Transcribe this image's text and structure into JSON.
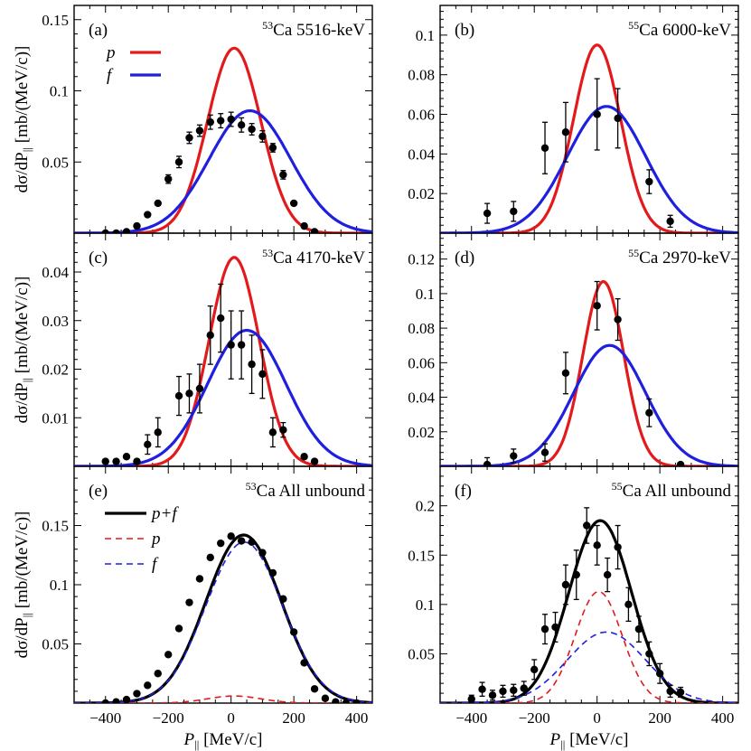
{
  "figure": {
    "xlabel_main": "P",
    "xlabel_sub": "||",
    "xlabel_unit": "[MeV/c]",
    "ylabel_prefix": "dσ/dP",
    "ylabel_sub": "||",
    "ylabel_unit": "[mb/(MeV/c)]",
    "colors": {
      "p": "#e31a1c",
      "f": "#1f1fe0",
      "sum": "#000000",
      "data": "#000000"
    }
  },
  "chart_data": [
    {
      "id": "a",
      "type": "line",
      "label": "(a)",
      "mass": "53",
      "element": "Ca",
      "state": "5516-keV",
      "xlim": [
        -500,
        450
      ],
      "ylim": [
        0,
        0.16
      ],
      "yticks": [
        0.05,
        0.1,
        0.15
      ],
      "yticklabels": [
        "0.05",
        "0.1",
        "0.15"
      ],
      "legend": {
        "entries": [
          "p",
          "f"
        ],
        "placement": "top-left"
      },
      "series": [
        {
          "name": "p",
          "style": "solid",
          "color": "p",
          "amp": 0.13,
          "mu": 10,
          "sigma": 85
        },
        {
          "name": "f",
          "style": "solid",
          "color": "f",
          "amp": 0.086,
          "mu": 60,
          "sigma": 130
        }
      ],
      "points": [
        {
          "x": -400,
          "y": 0.0
        },
        {
          "x": -366,
          "y": 0.0
        },
        {
          "x": -333,
          "y": 0.001
        },
        {
          "x": -300,
          "y": 0.005
        },
        {
          "x": -266,
          "y": 0.013
        },
        {
          "x": -233,
          "y": 0.021
        },
        {
          "x": -200,
          "y": 0.038,
          "e": 0.003
        },
        {
          "x": -166,
          "y": 0.05,
          "e": 0.004
        },
        {
          "x": -133,
          "y": 0.067,
          "e": 0.004
        },
        {
          "x": -100,
          "y": 0.072,
          "e": 0.004
        },
        {
          "x": -66,
          "y": 0.078,
          "e": 0.005
        },
        {
          "x": -33,
          "y": 0.079,
          "e": 0.005
        },
        {
          "x": 0,
          "y": 0.08,
          "e": 0.005
        },
        {
          "x": 33,
          "y": 0.076,
          "e": 0.005
        },
        {
          "x": 66,
          "y": 0.073,
          "e": 0.004
        },
        {
          "x": 100,
          "y": 0.068,
          "e": 0.004
        },
        {
          "x": 133,
          "y": 0.06,
          "e": 0.003
        },
        {
          "x": 166,
          "y": 0.041,
          "e": 0.003
        },
        {
          "x": 200,
          "y": 0.021
        },
        {
          "x": 233,
          "y": 0.005
        },
        {
          "x": 266,
          "y": 0.001
        }
      ]
    },
    {
      "id": "b",
      "type": "line",
      "label": "(b)",
      "mass": "55",
      "element": "Ca",
      "state": "6000-keV",
      "xlim": [
        -500,
        450
      ],
      "ylim": [
        0,
        0.115
      ],
      "yticks": [
        0.02,
        0.04,
        0.06,
        0.08,
        0.1
      ],
      "yticklabels": [
        "0.02",
        "0.04",
        "0.06",
        "0.08",
        "0.1"
      ],
      "series": [
        {
          "name": "p",
          "style": "solid",
          "color": "p",
          "amp": 0.095,
          "mu": 0,
          "sigma": 75
        },
        {
          "name": "f",
          "style": "solid",
          "color": "f",
          "amp": 0.064,
          "mu": 30,
          "sigma": 125
        }
      ],
      "points": [
        {
          "x": -350,
          "y": 0.01,
          "e": 0.005
        },
        {
          "x": -266,
          "y": 0.011,
          "e": 0.005
        },
        {
          "x": -166,
          "y": 0.043,
          "e": 0.013
        },
        {
          "x": -100,
          "y": 0.051,
          "e": 0.015
        },
        {
          "x": 0,
          "y": 0.06,
          "e": 0.018
        },
        {
          "x": 66,
          "y": 0.058,
          "e": 0.015
        },
        {
          "x": 166,
          "y": 0.026,
          "e": 0.006
        },
        {
          "x": 233,
          "y": 0.006,
          "e": 0.003
        }
      ]
    },
    {
      "id": "c",
      "type": "line",
      "label": "(c)",
      "mass": "53",
      "element": "Ca",
      "state": "4170-keV",
      "xlim": [
        -500,
        450
      ],
      "ylim": [
        0,
        0.048
      ],
      "yticks": [
        0.01,
        0.02,
        0.03,
        0.04
      ],
      "yticklabels": [
        "0.01",
        "0.02",
        "0.03",
        "0.04"
      ],
      "series": [
        {
          "name": "p",
          "style": "solid",
          "color": "p",
          "amp": 0.043,
          "mu": 10,
          "sigma": 80
        },
        {
          "name": "f",
          "style": "solid",
          "color": "f",
          "amp": 0.028,
          "mu": 50,
          "sigma": 125
        }
      ],
      "points": [
        {
          "x": -400,
          "y": 0.001
        },
        {
          "x": -366,
          "y": 0.001
        },
        {
          "x": -333,
          "y": 0.002
        },
        {
          "x": -300,
          "y": 0.001
        },
        {
          "x": -266,
          "y": 0.0045,
          "e": 0.002
        },
        {
          "x": -233,
          "y": 0.007,
          "e": 0.003
        },
        {
          "x": -166,
          "y": 0.0145,
          "e": 0.004
        },
        {
          "x": -133,
          "y": 0.015,
          "e": 0.004
        },
        {
          "x": -100,
          "y": 0.016,
          "e": 0.005
        },
        {
          "x": -66,
          "y": 0.027,
          "e": 0.006
        },
        {
          "x": -33,
          "y": 0.0305,
          "e": 0.007
        },
        {
          "x": 0,
          "y": 0.025,
          "e": 0.007
        },
        {
          "x": 33,
          "y": 0.025,
          "e": 0.007
        },
        {
          "x": 66,
          "y": 0.021,
          "e": 0.006
        },
        {
          "x": 100,
          "y": 0.019,
          "e": 0.005
        },
        {
          "x": 133,
          "y": 0.007,
          "e": 0.003
        },
        {
          "x": 166,
          "y": 0.0075,
          "e": 0.0015
        },
        {
          "x": 233,
          "y": 0.002
        },
        {
          "x": 266,
          "y": 0.001
        }
      ]
    },
    {
      "id": "d",
      "type": "line",
      "label": "(d)",
      "mass": "55",
      "element": "Ca",
      "state": "2970-keV",
      "xlim": [
        -500,
        450
      ],
      "ylim": [
        0,
        0.135
      ],
      "yticks": [
        0.02,
        0.04,
        0.06,
        0.08,
        0.1,
        0.12
      ],
      "yticklabels": [
        "0.02",
        "0.04",
        "0.06",
        "0.08",
        "0.1",
        "0.12"
      ],
      "series": [
        {
          "name": "p",
          "style": "solid",
          "color": "p",
          "amp": 0.107,
          "mu": 20,
          "sigma": 65
        },
        {
          "name": "f",
          "style": "solid",
          "color": "f",
          "amp": 0.07,
          "mu": 40,
          "sigma": 115
        }
      ],
      "points": [
        {
          "x": -350,
          "y": 0.001,
          "e": 0.004
        },
        {
          "x": -266,
          "y": 0.006,
          "e": 0.004
        },
        {
          "x": -166,
          "y": 0.008,
          "e": 0.005
        },
        {
          "x": -100,
          "y": 0.054,
          "e": 0.012
        },
        {
          "x": 0,
          "y": 0.093,
          "e": 0.014
        },
        {
          "x": 66,
          "y": 0.085,
          "e": 0.012
        },
        {
          "x": 166,
          "y": 0.031,
          "e": 0.008
        },
        {
          "x": 266,
          "y": 0.001
        }
      ]
    },
    {
      "id": "e",
      "type": "line",
      "label": "(e)",
      "mass": "53",
      "element": "Ca",
      "state": "All unbound",
      "xlim": [
        -500,
        450
      ],
      "ylim": [
        0,
        0.2
      ],
      "yticks": [
        0.05,
        0.1,
        0.15
      ],
      "yticklabels": [
        "0.05",
        "0.1",
        "0.15"
      ],
      "xticks": [
        -400,
        -200,
        0,
        200,
        400
      ],
      "xticklabels": [
        "−400",
        "−200",
        "0",
        "200",
        "400"
      ],
      "legend": {
        "entries": [
          "p+f",
          "p",
          "f"
        ],
        "placement": "top-left"
      },
      "series": [
        {
          "name": "p+f",
          "style": "solid",
          "color": "sum",
          "amp": 0.142,
          "mu": 40,
          "sigma": 120
        },
        {
          "name": "p",
          "style": "dashed",
          "color": "p",
          "amp": 0.006,
          "mu": 10,
          "sigma": 85
        },
        {
          "name": "f",
          "style": "dashed",
          "color": "f",
          "amp": 0.136,
          "mu": 42,
          "sigma": 122
        }
      ],
      "points": [
        {
          "x": -400,
          "y": 0.0
        },
        {
          "x": -366,
          "y": 0.001
        },
        {
          "x": -333,
          "y": 0.003
        },
        {
          "x": -300,
          "y": 0.008
        },
        {
          "x": -266,
          "y": 0.015
        },
        {
          "x": -233,
          "y": 0.025
        },
        {
          "x": -200,
          "y": 0.041
        },
        {
          "x": -166,
          "y": 0.063
        },
        {
          "x": -133,
          "y": 0.085
        },
        {
          "x": -100,
          "y": 0.105
        },
        {
          "x": -66,
          "y": 0.123
        },
        {
          "x": -33,
          "y": 0.135
        },
        {
          "x": 0,
          "y": 0.141
        },
        {
          "x": 33,
          "y": 0.137
        },
        {
          "x": 66,
          "y": 0.136
        },
        {
          "x": 100,
          "y": 0.127
        },
        {
          "x": 133,
          "y": 0.11
        },
        {
          "x": 166,
          "y": 0.088
        },
        {
          "x": 200,
          "y": 0.06
        },
        {
          "x": 233,
          "y": 0.034
        },
        {
          "x": 266,
          "y": 0.012
        },
        {
          "x": 300,
          "y": 0.004
        },
        {
          "x": 333,
          "y": 0.001
        },
        {
          "x": 366,
          "y": 0.0
        },
        {
          "x": 400,
          "y": 0.0
        }
      ]
    },
    {
      "id": "f",
      "type": "line",
      "label": "(f)",
      "mass": "55",
      "element": "Ca",
      "state": "All unbound",
      "xlim": [
        -500,
        450
      ],
      "ylim": [
        0,
        0.24
      ],
      "yticks": [
        0.05,
        0.1,
        0.15,
        0.2
      ],
      "yticklabels": [
        "0.05",
        "0.1",
        "0.15",
        "0.2"
      ],
      "xticks": [
        -400,
        -200,
        0,
        200,
        400
      ],
      "xticklabels": [
        "−400",
        "−200",
        "0",
        "200",
        "400"
      ],
      "series": [
        {
          "name": "p+f",
          "style": "solid",
          "color": "sum",
          "amp": 0.185,
          "mu": 10,
          "sigma": 100
        },
        {
          "name": "p",
          "style": "dashed",
          "color": "p",
          "amp": 0.113,
          "mu": 5,
          "sigma": 75
        },
        {
          "name": "f",
          "style": "dashed",
          "color": "f",
          "amp": 0.072,
          "mu": 30,
          "sigma": 125
        }
      ],
      "points": [
        {
          "x": -400,
          "y": 0.004,
          "e": 0.004
        },
        {
          "x": -366,
          "y": 0.014,
          "e": 0.007
        },
        {
          "x": -333,
          "y": 0.008,
          "e": 0.005
        },
        {
          "x": -300,
          "y": 0.012,
          "e": 0.006
        },
        {
          "x": -266,
          "y": 0.013,
          "e": 0.006
        },
        {
          "x": -233,
          "y": 0.015,
          "e": 0.007
        },
        {
          "x": -200,
          "y": 0.034,
          "e": 0.01
        },
        {
          "x": -166,
          "y": 0.075,
          "e": 0.015
        },
        {
          "x": -133,
          "y": 0.077,
          "e": 0.015
        },
        {
          "x": -100,
          "y": 0.12,
          "e": 0.02
        },
        {
          "x": -66,
          "y": 0.13,
          "e": 0.025
        },
        {
          "x": -33,
          "y": 0.18,
          "e": 0.018
        },
        {
          "x": 0,
          "y": 0.16,
          "e": 0.02
        },
        {
          "x": 33,
          "y": 0.13,
          "e": 0.017
        },
        {
          "x": 66,
          "y": 0.158,
          "e": 0.022
        },
        {
          "x": 100,
          "y": 0.1,
          "e": 0.017
        },
        {
          "x": 133,
          "y": 0.075,
          "e": 0.013
        },
        {
          "x": 166,
          "y": 0.05,
          "e": 0.012
        },
        {
          "x": 200,
          "y": 0.03,
          "e": 0.01
        },
        {
          "x": 233,
          "y": 0.012,
          "e": 0.006
        },
        {
          "x": 266,
          "y": 0.011,
          "e": 0.005
        }
      ]
    }
  ]
}
